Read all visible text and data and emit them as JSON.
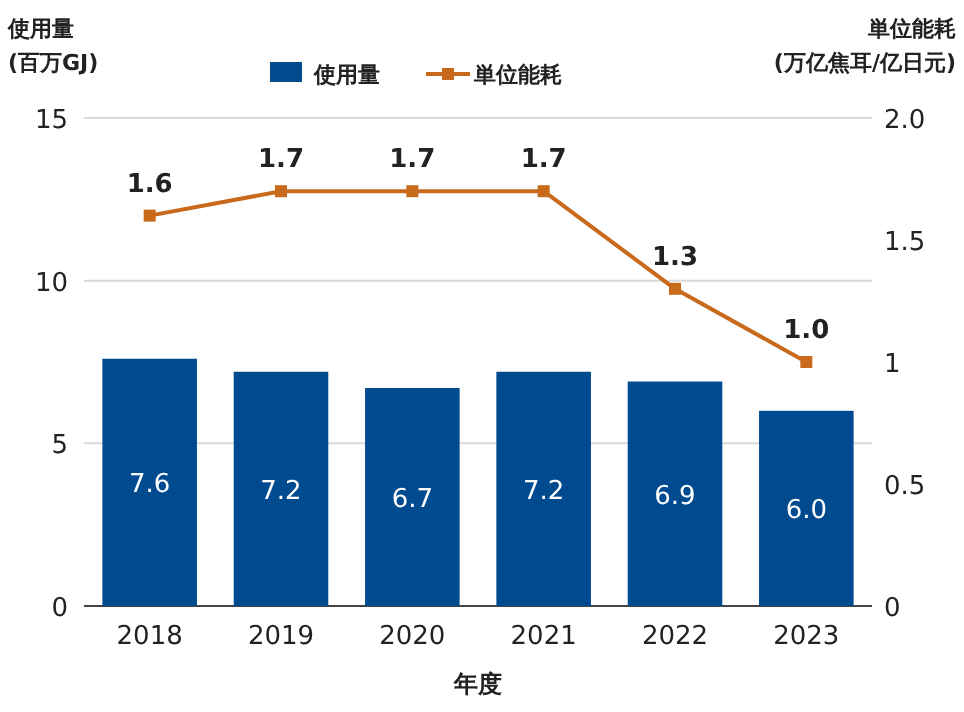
{
  "chart_data": {
    "type": "bar",
    "categories": [
      "2018",
      "2019",
      "2020",
      "2021",
      "2022",
      "2023"
    ],
    "xlabel": "年度",
    "ylabel": "使用量\n(百万GJ)",
    "y2label": "単位能耗\n(万亿焦耳/亿日元)",
    "ylim": [
      0,
      15
    ],
    "yticks": [
      0,
      5,
      10,
      15
    ],
    "y2lim": [
      0,
      2
    ],
    "y2ticks": [
      0,
      0.5,
      1,
      1.5,
      {
        "value": 2,
        "label": "2.0"
      }
    ],
    "grid": "y",
    "legend": "top",
    "marker": "square",
    "series": [
      {
        "name": "使用量",
        "color": "#004a8f",
        "values": [
          7.6,
          7.2,
          6.7,
          7.2,
          6.9,
          6.0
        ],
        "value_labels": [
          "7.6",
          "7.2",
          "6.7",
          "7.2",
          "6.9",
          "6.0"
        ]
      },
      {
        "name": "単位能耗",
        "type": "line",
        "axis": "y2",
        "color": "#c8691c",
        "values": [
          1.6,
          1.7,
          1.7,
          1.7,
          1.3,
          1.0
        ],
        "value_labels": [
          "1.6",
          "1.7",
          "1.7",
          "1.7",
          "1.3",
          "1.0"
        ]
      }
    ]
  }
}
